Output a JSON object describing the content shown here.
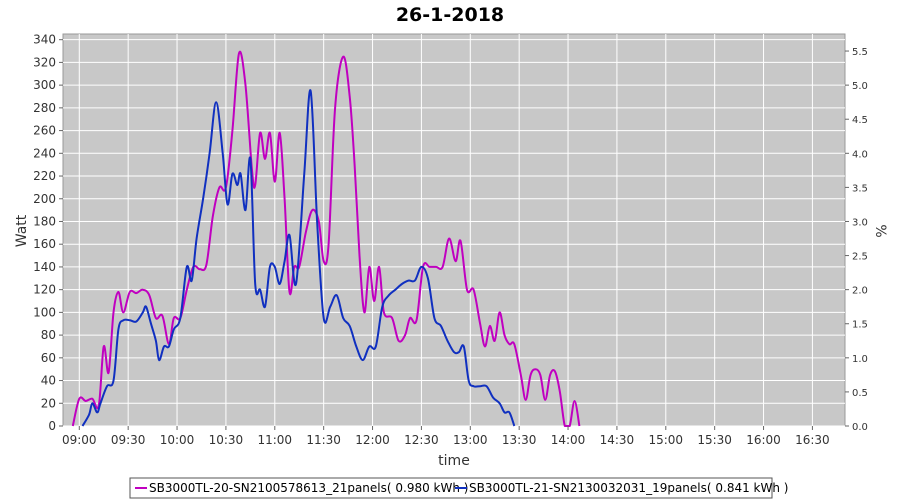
{
  "chart_data": {
    "type": "line",
    "title": "26-1-2018",
    "xlabel": "time",
    "ylabel": "Watt",
    "y2label": "%",
    "xlim": [
      "08:50",
      "16:50"
    ],
    "ylim": [
      0,
      345
    ],
    "y2lim": [
      0,
      5.75
    ],
    "xticks": [
      "09:00",
      "09:30",
      "10:00",
      "10:30",
      "11:00",
      "11:30",
      "12:00",
      "12:30",
      "13:00",
      "13:30",
      "14:00",
      "14:30",
      "15:00",
      "15:30",
      "16:00",
      "16:30"
    ],
    "yticks": [
      0,
      20,
      40,
      60,
      80,
      100,
      120,
      140,
      160,
      180,
      200,
      220,
      240,
      260,
      280,
      300,
      320,
      340
    ],
    "y2ticks": [
      "0.0",
      "0.5",
      "1.0",
      "1.5",
      "2.0",
      "2.5",
      "3.0",
      "3.5",
      "4.0",
      "4.5",
      "5.0",
      "5.5"
    ],
    "grid": true,
    "legend_position": "bottom",
    "background": "#c8c8c8",
    "series": [
      {
        "name": "SB3000TL-20-SN2100578613_21panels( 0.980 kWh )",
        "color": "#c000c0",
        "points": [
          [
            "08:56",
            0
          ],
          [
            "09:00",
            24
          ],
          [
            "09:04",
            22
          ],
          [
            "09:08",
            24
          ],
          [
            "09:12",
            18
          ],
          [
            "09:15",
            70
          ],
          [
            "09:18",
            47
          ],
          [
            "09:21",
            100
          ],
          [
            "09:24",
            118
          ],
          [
            "09:27",
            100
          ],
          [
            "09:31",
            118
          ],
          [
            "09:35",
            117
          ],
          [
            "09:39",
            120
          ],
          [
            "09:43",
            115
          ],
          [
            "09:47",
            95
          ],
          [
            "09:51",
            97
          ],
          [
            "09:55",
            72
          ],
          [
            "09:58",
            95
          ],
          [
            "10:02",
            95
          ],
          [
            "10:06",
            120
          ],
          [
            "10:10",
            140
          ],
          [
            "10:14",
            138
          ],
          [
            "10:18",
            142
          ],
          [
            "10:22",
            185
          ],
          [
            "10:26",
            210
          ],
          [
            "10:30",
            210
          ],
          [
            "10:34",
            260
          ],
          [
            "10:38",
            328
          ],
          [
            "10:42",
            300
          ],
          [
            "10:46",
            225
          ],
          [
            "10:48",
            212
          ],
          [
            "10:51",
            258
          ],
          [
            "10:54",
            235
          ],
          [
            "10:57",
            258
          ],
          [
            "11:00",
            215
          ],
          [
            "11:03",
            258
          ],
          [
            "11:06",
            200
          ],
          [
            "11:09",
            118
          ],
          [
            "11:12",
            140
          ],
          [
            "11:15",
            140
          ],
          [
            "11:19",
            170
          ],
          [
            "11:23",
            190
          ],
          [
            "11:27",
            180
          ],
          [
            "11:30",
            145
          ],
          [
            "11:33",
            160
          ],
          [
            "11:37",
            280
          ],
          [
            "11:42",
            325
          ],
          [
            "11:46",
            290
          ],
          [
            "11:49",
            230
          ],
          [
            "11:52",
            150
          ],
          [
            "11:55",
            100
          ],
          [
            "11:58",
            140
          ],
          [
            "12:01",
            110
          ],
          [
            "12:04",
            140
          ],
          [
            "12:07",
            100
          ],
          [
            "12:12",
            95
          ],
          [
            "12:16",
            75
          ],
          [
            "12:20",
            80
          ],
          [
            "12:23",
            95
          ],
          [
            "12:27",
            93
          ],
          [
            "12:31",
            140
          ],
          [
            "12:35",
            140
          ],
          [
            "12:39",
            140
          ],
          [
            "12:43",
            140
          ],
          [
            "12:47",
            165
          ],
          [
            "12:51",
            145
          ],
          [
            "12:54",
            163
          ],
          [
            "12:58",
            120
          ],
          [
            "13:02",
            120
          ],
          [
            "13:06",
            90
          ],
          [
            "13:09",
            70
          ],
          [
            "13:12",
            88
          ],
          [
            "13:15",
            75
          ],
          [
            "13:18",
            100
          ],
          [
            "13:21",
            80
          ],
          [
            "13:24",
            72
          ],
          [
            "13:27",
            72
          ],
          [
            "13:31",
            45
          ],
          [
            "13:34",
            23
          ],
          [
            "13:37",
            45
          ],
          [
            "13:40",
            50
          ],
          [
            "13:43",
            45
          ],
          [
            "13:46",
            23
          ],
          [
            "13:49",
            45
          ],
          [
            "13:52",
            48
          ],
          [
            "13:55",
            30
          ],
          [
            "13:58",
            0
          ],
          [
            "14:01",
            0
          ],
          [
            "14:04",
            22
          ],
          [
            "14:07",
            0
          ]
        ]
      },
      {
        "name": "SB3000TL-21-SN2130032031_19panels( 0.841 kWh )",
        "color": "#1030c0",
        "points": [
          [
            "09:02",
            0
          ],
          [
            "09:06",
            10
          ],
          [
            "09:08",
            20
          ],
          [
            "09:11",
            12
          ],
          [
            "09:13",
            20
          ],
          [
            "09:17",
            35
          ],
          [
            "09:21",
            40
          ],
          [
            "09:24",
            85
          ],
          [
            "09:27",
            93
          ],
          [
            "09:31",
            93
          ],
          [
            "09:35",
            92
          ],
          [
            "09:39",
            100
          ],
          [
            "09:41",
            105
          ],
          [
            "09:44",
            90
          ],
          [
            "09:47",
            75
          ],
          [
            "09:49",
            58
          ],
          [
            "09:52",
            70
          ],
          [
            "09:55",
            70
          ],
          [
            "09:58",
            85
          ],
          [
            "10:02",
            95
          ],
          [
            "10:06",
            140
          ],
          [
            "10:09",
            128
          ],
          [
            "10:12",
            165
          ],
          [
            "10:16",
            200
          ],
          [
            "10:20",
            240
          ],
          [
            "10:24",
            285
          ],
          [
            "10:28",
            240
          ],
          [
            "10:31",
            195
          ],
          [
            "10:34",
            222
          ],
          [
            "10:37",
            212
          ],
          [
            "10:39",
            222
          ],
          [
            "10:42",
            190
          ],
          [
            "10:45",
            235
          ],
          [
            "10:48",
            125
          ],
          [
            "10:51",
            120
          ],
          [
            "10:54",
            105
          ],
          [
            "10:57",
            140
          ],
          [
            "11:00",
            140
          ],
          [
            "11:03",
            125
          ],
          [
            "11:06",
            145
          ],
          [
            "11:09",
            168
          ],
          [
            "11:13",
            125
          ],
          [
            "11:18",
            220
          ],
          [
            "11:22",
            295
          ],
          [
            "11:26",
            180
          ],
          [
            "11:30",
            95
          ],
          [
            "11:34",
            105
          ],
          [
            "11:38",
            115
          ],
          [
            "11:42",
            95
          ],
          [
            "11:46",
            88
          ],
          [
            "11:50",
            70
          ],
          [
            "11:54",
            58
          ],
          [
            "11:58",
            70
          ],
          [
            "12:02",
            70
          ],
          [
            "12:06",
            105
          ],
          [
            "12:10",
            115
          ],
          [
            "12:14",
            120
          ],
          [
            "12:18",
            125
          ],
          [
            "12:22",
            128
          ],
          [
            "12:26",
            128
          ],
          [
            "12:30",
            140
          ],
          [
            "12:34",
            130
          ],
          [
            "12:38",
            95
          ],
          [
            "12:42",
            88
          ],
          [
            "12:46",
            75
          ],
          [
            "12:50",
            65
          ],
          [
            "12:53",
            65
          ],
          [
            "12:56",
            70
          ],
          [
            "12:59",
            40
          ],
          [
            "13:02",
            35
          ],
          [
            "13:06",
            35
          ],
          [
            "13:10",
            35
          ],
          [
            "13:14",
            25
          ],
          [
            "13:18",
            20
          ],
          [
            "13:21",
            12
          ],
          [
            "13:24",
            12
          ],
          [
            "13:27",
            0
          ]
        ]
      }
    ]
  }
}
